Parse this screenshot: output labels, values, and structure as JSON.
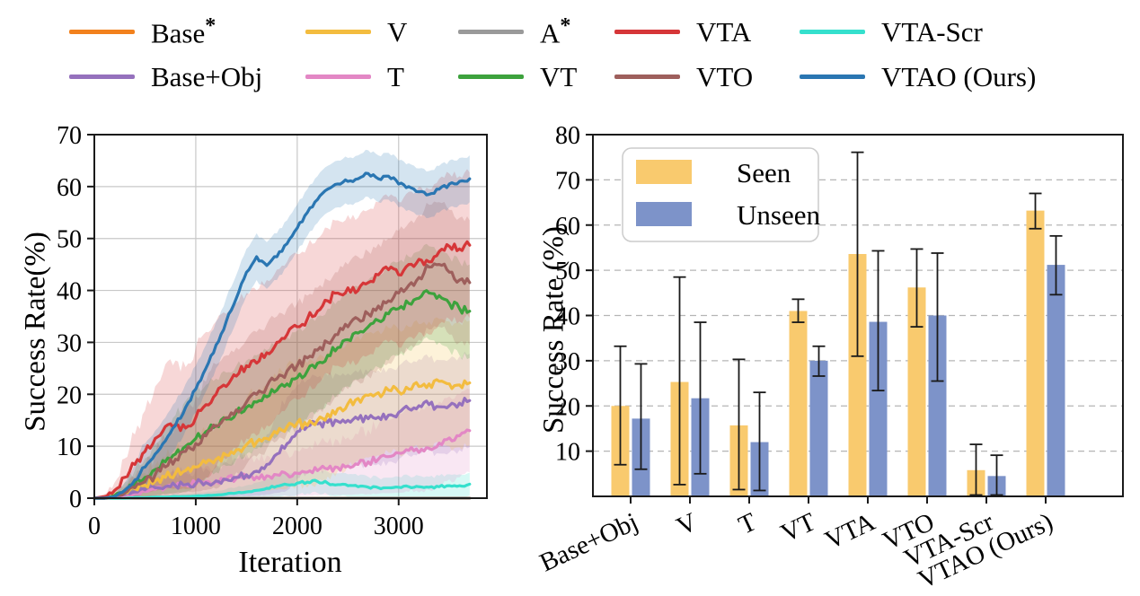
{
  "figure": {
    "background": "#ffffff",
    "axis_color": "#1a1a1a"
  },
  "top_legend": {
    "entries": [
      {
        "label": "Base",
        "sup": "*",
        "color": "#f2811d"
      },
      {
        "label": "V",
        "sup": "",
        "color": "#f3bc3f"
      },
      {
        "label": "A",
        "sup": "*",
        "color": "#9a9a9a"
      },
      {
        "label": "VTA",
        "sup": "",
        "color": "#d63638"
      },
      {
        "label": "VTA-Scr",
        "sup": "",
        "color": "#35e0cd"
      },
      {
        "label": "Base+Obj",
        "sup": "",
        "color": "#9571bd"
      },
      {
        "label": "T",
        "sup": "",
        "color": "#e387c5"
      },
      {
        "label": "VT",
        "sup": "",
        "color": "#3da23d"
      },
      {
        "label": "VTO",
        "sup": "",
        "color": "#9e5f5c"
      },
      {
        "label": "VTAO (Ours)",
        "sup": "",
        "color": "#2a76b2"
      }
    ]
  },
  "chart_data": [
    {
      "type": "line",
      "title": "",
      "xlabel": "Iteration",
      "ylabel": "Success Rate(%)",
      "xlim": [
        0,
        3870
      ],
      "ylim": [
        0,
        70
      ],
      "xticks": [
        0,
        1000,
        2000,
        3000
      ],
      "yticks": [
        0,
        10,
        20,
        30,
        40,
        50,
        60,
        70
      ],
      "grid": "solid",
      "x_step": 100,
      "series": [
        {
          "name": "Base*",
          "color": "#f2811d",
          "band": 0.4,
          "values": [
            0,
            0,
            0,
            0,
            0,
            0,
            0,
            0,
            0,
            0,
            0,
            0,
            0,
            0,
            0,
            0,
            0,
            0,
            0,
            0,
            0,
            0,
            0,
            0,
            0,
            0,
            0,
            0,
            0,
            0,
            0,
            0,
            0,
            0,
            0,
            0,
            0,
            0
          ]
        },
        {
          "name": "A*",
          "color": "#9a9a9a",
          "band": 0.4,
          "values": [
            0,
            0,
            0,
            0,
            0,
            0,
            0,
            0,
            0,
            0,
            0,
            0,
            0,
            0,
            0,
            0,
            0,
            0,
            0,
            0,
            0,
            0,
            0,
            0,
            0,
            0,
            0,
            0,
            0,
            0,
            0,
            0,
            0,
            0,
            0,
            0,
            0,
            0
          ]
        },
        {
          "name": "VTA-Scr",
          "color": "#35e0cd",
          "band": 2.2,
          "values": [
            0,
            0,
            0,
            0,
            0.1,
            0.1,
            0.2,
            0.2,
            0.3,
            0.3,
            0.4,
            0.5,
            0.6,
            0.8,
            1,
            1.2,
            1.5,
            1.9,
            2.3,
            2.6,
            2.9,
            3.1,
            3.2,
            2.9,
            2.6,
            2.4,
            2.2,
            2.1,
            2,
            2,
            2.1,
            2.2,
            2.2,
            2.1,
            2.2,
            2.4,
            2.4,
            2.7
          ]
        },
        {
          "name": "T",
          "color": "#e387c5",
          "band": 8,
          "values": [
            0,
            0,
            0.2,
            0.5,
            0.9,
            1.3,
            1.7,
            2,
            2.3,
            2.6,
            2.9,
            3.2,
            3.4,
            3.6,
            3.8,
            4,
            4.1,
            4.3,
            4.5,
            4.6,
            4.8,
            5,
            5.3,
            5.6,
            5.9,
            6.2,
            6.5,
            7,
            7.5,
            8,
            8.7,
            9.2,
            8.8,
            9.6,
            10.6,
            11.6,
            12,
            13
          ]
        },
        {
          "name": "Base+Obj",
          "color": "#9571bd",
          "band": 9,
          "values": [
            0,
            0,
            0.2,
            0.7,
            1.2,
            1.6,
            2,
            2.2,
            2.4,
            2.6,
            2.8,
            3,
            3.3,
            3.6,
            4,
            4.5,
            5.2,
            6.5,
            8.5,
            10.5,
            12.8,
            13.8,
            14.3,
            14.6,
            14.8,
            15,
            15.2,
            15.3,
            15.6,
            16,
            16.5,
            17.2,
            17.8,
            18,
            17.6,
            17.8,
            18.3,
            18.8
          ]
        },
        {
          "name": "V",
          "color": "#f3bc3f",
          "band": 12,
          "values": [
            0,
            0,
            0.3,
            1,
            1.8,
            2.5,
            3.3,
            4,
            4.8,
            5.3,
            6,
            6.8,
            7.5,
            8.3,
            9.3,
            10.3,
            10.8,
            11.5,
            12.5,
            13.8,
            14.5,
            14,
            15,
            16.2,
            17.2,
            18.2,
            19.2,
            19.8,
            20.3,
            20.8,
            20.5,
            21,
            21.5,
            22,
            22.5,
            22,
            21.8,
            22.2
          ]
        },
        {
          "name": "VT",
          "color": "#3da23d",
          "band": 9,
          "values": [
            0,
            0,
            0.5,
            1.5,
            2.8,
            4,
            5.5,
            7,
            8.5,
            10,
            11.5,
            12.8,
            14,
            15.2,
            16.5,
            17.5,
            18.5,
            19.5,
            20.8,
            22,
            23.2,
            24.5,
            26,
            27.5,
            29,
            30.5,
            31.8,
            33,
            34.2,
            35.5,
            36.5,
            37.5,
            38.5,
            39.5,
            39,
            37.5,
            36.5,
            36
          ]
        },
        {
          "name": "VTO",
          "color": "#9e5f5c",
          "band": 12,
          "values": [
            0,
            0,
            0.3,
            1,
            2,
            3.2,
            4.5,
            6,
            7.5,
            9,
            10.5,
            12,
            13.8,
            15.5,
            17,
            18.5,
            20,
            21.5,
            23,
            24.5,
            25.5,
            27,
            28.5,
            30,
            31.5,
            33,
            34.5,
            35.5,
            37,
            38,
            39.5,
            41,
            42.5,
            44.5,
            45,
            43.5,
            42,
            41.5
          ]
        },
        {
          "name": "VTA",
          "color": "#d63638",
          "band": 14,
          "values": [
            0,
            0.3,
            1.5,
            4,
            6.5,
            9,
            11.5,
            13.8,
            14.2,
            13.5,
            15.5,
            18,
            20,
            21.5,
            23.5,
            25.5,
            26,
            28,
            30,
            31.5,
            33,
            34.5,
            36,
            38,
            39.5,
            40.5,
            40,
            41.5,
            43,
            44,
            43,
            45,
            46,
            45.5,
            47.5,
            48.5,
            48,
            48.7
          ]
        },
        {
          "name": "VTAO (Ours)",
          "color": "#2a76b2",
          "band": 4.5,
          "values": [
            0,
            0,
            0.3,
            1.5,
            3.5,
            6,
            8.5,
            11,
            14,
            17.5,
            21,
            25,
            29.5,
            34,
            38.5,
            43.5,
            46.5,
            44.8,
            46.5,
            49,
            52,
            55,
            57.5,
            59.5,
            60.5,
            61,
            61.5,
            62.5,
            61.5,
            62,
            60.5,
            60,
            59,
            58.5,
            59.5,
            60.5,
            61,
            61.5
          ]
        }
      ]
    },
    {
      "type": "bar",
      "title": "",
      "xlabel": "",
      "ylabel": "Success Rate (%)",
      "ylim": [
        0,
        80
      ],
      "yticks": [
        10,
        20,
        30,
        40,
        50,
        60,
        70,
        80
      ],
      "grid": "dashed-horizontal",
      "tick_rotation": -25,
      "categories": [
        "Base+Obj",
        "V",
        "T",
        "VT",
        "VTA",
        "VTO",
        "VTA-Scr",
        "VTAO (Ours)"
      ],
      "legend": {
        "position": "upper-left",
        "entries": [
          {
            "name": "Seen",
            "color": "#f9ca6e"
          },
          {
            "name": "Unseen",
            "color": "#7d93c9"
          }
        ]
      },
      "series": [
        {
          "name": "Seen",
          "color": "#f9ca6e",
          "values": [
            20,
            25.3,
            15.7,
            41,
            53.6,
            46.2,
            5.8,
            63.2
          ],
          "err_low": [
            7,
            2.6,
            1.5,
            38.5,
            31,
            37.5,
            0.3,
            59.2
          ],
          "err_high": [
            33.2,
            48.5,
            30.3,
            43.6,
            76.1,
            54.7,
            11.5,
            67
          ]
        },
        {
          "name": "Unseen",
          "color": "#7d93c9",
          "values": [
            17.2,
            21.7,
            12,
            30,
            38.6,
            40,
            4.5,
            51.2
          ],
          "err_low": [
            6,
            5,
            1.3,
            26.6,
            23.4,
            25.5,
            0.3,
            44.6
          ],
          "err_high": [
            29.3,
            38.5,
            23,
            33.2,
            54.3,
            53.8,
            9.1,
            57.6
          ]
        }
      ]
    }
  ]
}
